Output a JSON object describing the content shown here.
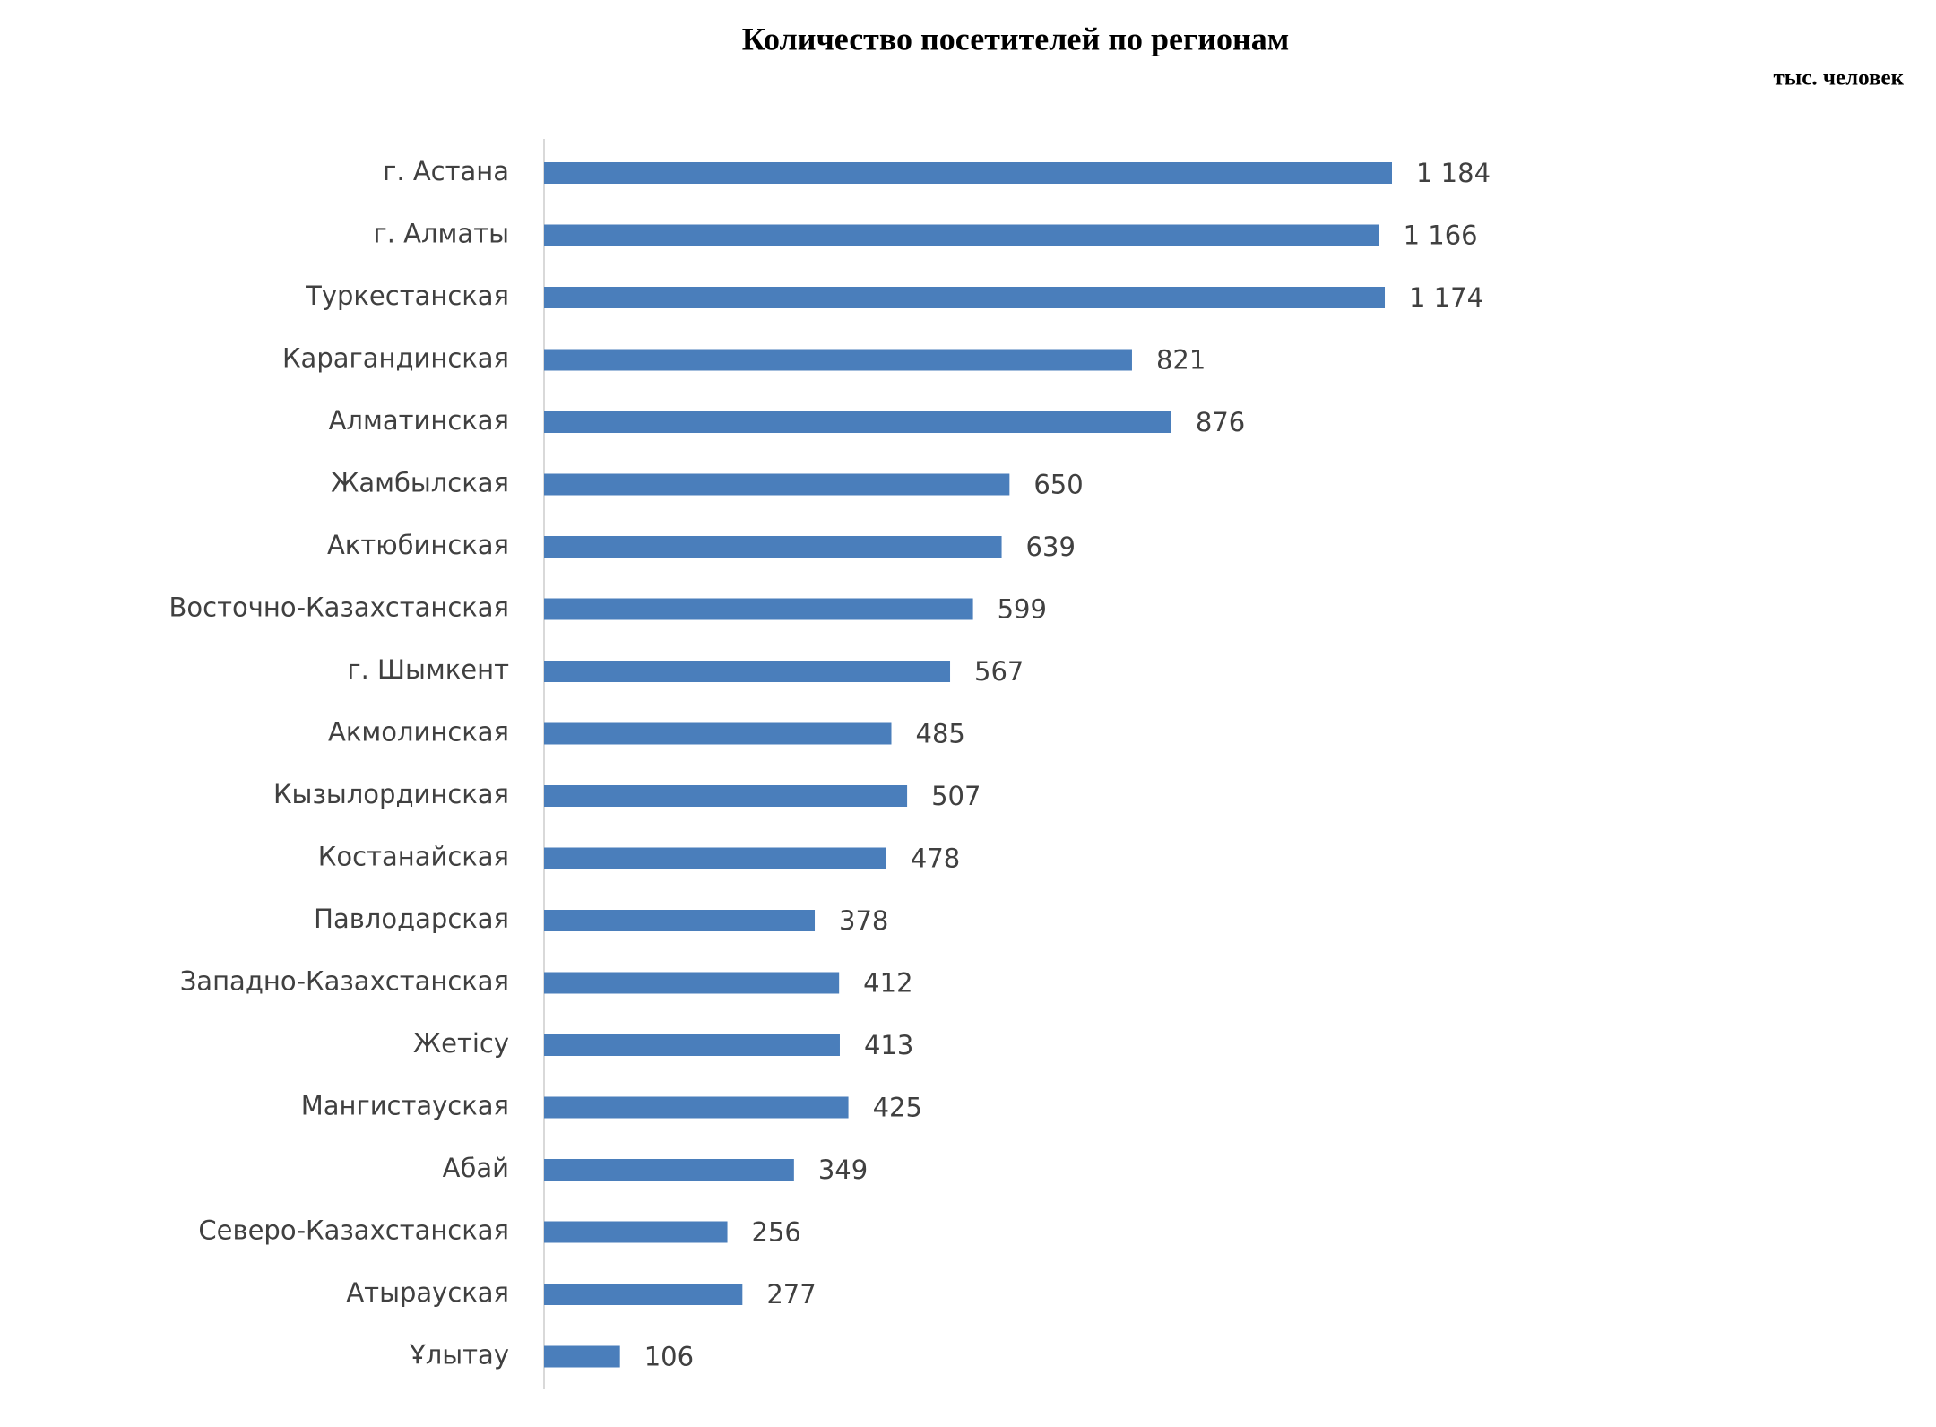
{
  "chart_data": {
    "type": "hbar",
    "title": "Количество посетителей по регионам",
    "subtitle": "тыс. человек",
    "categories": [
      "г. Астана",
      "г. Алматы",
      "Туркестанская",
      "Карагандинская",
      "Алматинская",
      "Жамбылская",
      "Актюбинская",
      "Восточно-Казахстанская",
      "г. Шымкент",
      "Акмолинская",
      "Кызылординская",
      "Костанайская",
      "Павлодарская",
      "Западно-Казахстанская",
      "Жетісу",
      "Мангистауская",
      "Абай",
      "Северо-Казахстанская",
      "Атырауская",
      "Ұлытау"
    ],
    "values": [
      1184,
      1166,
      1174,
      821,
      876,
      650,
      639,
      599,
      567,
      485,
      507,
      478,
      378,
      412,
      413,
      425,
      349,
      256,
      277,
      106
    ],
    "value_labels": [
      "1 184",
      "1 166",
      "1 174",
      "821",
      "876",
      "650",
      "639",
      "599",
      "567",
      "485",
      "507",
      "478",
      "378",
      "412",
      "413",
      "425",
      "349",
      "256",
      "277",
      "106"
    ],
    "color": "#4a7ebb"
  }
}
